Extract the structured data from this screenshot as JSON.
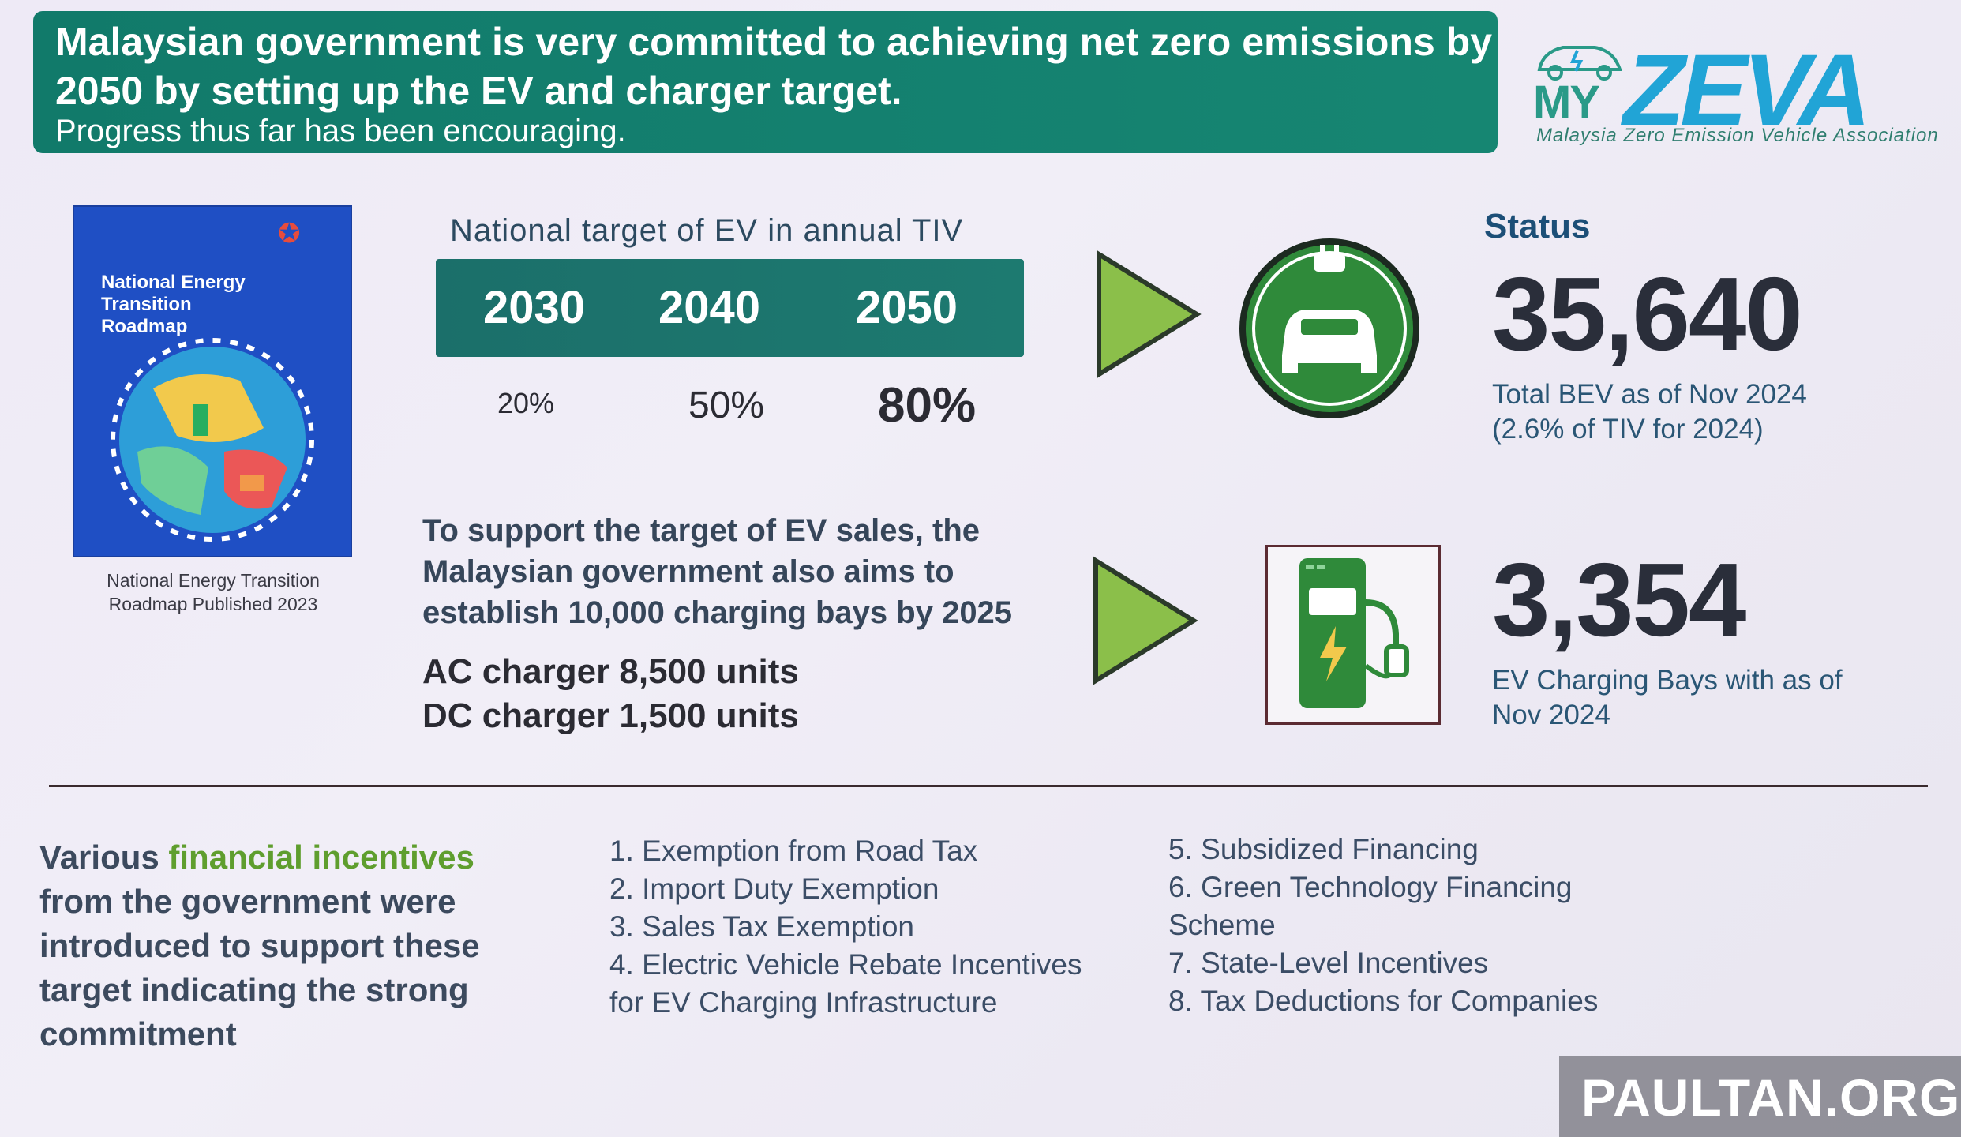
{
  "header": {
    "line1": "Malaysian government is very committed to achieving net zero emissions by",
    "line2": "2050 by setting up the EV and charger target.",
    "line3": "Progress thus far has been encouraging."
  },
  "logo": {
    "my": "MY",
    "zeva": "ZEVA",
    "subtitle": "Malaysia Zero Emission Vehicle Association"
  },
  "book": {
    "title": "National Energy Transition Roadmap",
    "caption_line1": "National Energy Transition",
    "caption_line2": "Roadmap Published 2023"
  },
  "targets": {
    "title": "National target of EV in annual TIV",
    "years": [
      "2030",
      "2040",
      "2050"
    ],
    "percents": [
      "20%",
      "50%",
      "80%"
    ]
  },
  "status": {
    "label": "Status",
    "bev_number": "35,640",
    "bev_note_line1": "Total BEV as of Nov 2024",
    "bev_note_line2": "(2.6% of TIV for 2024)",
    "bays_number": "3,354",
    "bays_note_line1": "EV Charging Bays with as of",
    "bays_note_line2": "Nov 2024"
  },
  "charging": {
    "support_line1": "To support the target of EV sales, the",
    "support_line2": "Malaysian government also aims to",
    "support_line3": "establish 10,000 charging bays by 2025",
    "ac": "AC charger 8,500 units",
    "dc": "DC charger 1,500 units"
  },
  "incentives": {
    "intro_pre": "Various ",
    "intro_highlight": "financial incentives",
    "intro_post": " from the government were introduced to support these target indicating the strong commitment",
    "left_list": [
      "1. Exemption from Road Tax",
      "2. Import Duty Exemption",
      "3. Sales Tax Exemption",
      "4. Electric Vehicle Rebate Incentives",
      "for EV Charging Infrastructure"
    ],
    "right_list": [
      "5. Subsidized Financing",
      "6. Green Technology Financing",
      "Scheme",
      "7. State-Level Incentives",
      "8. Tax Deductions for Companies"
    ]
  },
  "watermark": "PAULTAN.ORG",
  "colors": {
    "banner": "#14806f",
    "year_bar": "#1b6f6a",
    "arrow_green": "#8bbf4a",
    "icon_green": "#2f8a3a",
    "zeva_blue": "#21a4d6",
    "highlight_green": "#5f9e2e"
  }
}
